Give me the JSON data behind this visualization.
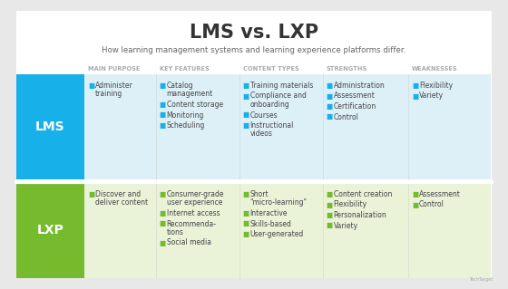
{
  "title": "LMS vs. LXP",
  "subtitle": "How learning management systems and learning experience platforms differ.",
  "background_color": "#e8e8e8",
  "chart_bg": "#ffffff",
  "headers": [
    "MAIN PURPOSE",
    "KEY FEATURES",
    "CONTENT TYPES",
    "STRENGTHS",
    "WEAKNESSES"
  ],
  "lms_label": "LMS",
  "lxp_label": "LXP",
  "lms_color": "#18b0e8",
  "lxp_color": "#76bb2e",
  "lms_row_bg": "#ddf0f8",
  "lxp_row_bg": "#eaf2d8",
  "header_text_color": "#aaaaaa",
  "body_text_color": "#444444",
  "bullet_lms_color": "#18b0e8",
  "bullet_lxp_color": "#76bb2e",
  "lms_data": [
    [
      "Administer\ntraining"
    ],
    [
      "Catalog\nmanagement",
      "Content storage",
      "Monitoring",
      "Scheduling"
    ],
    [
      "Training materials",
      "Compliance and\nonboarding",
      "Courses",
      "Instructional\nvideos"
    ],
    [
      "Administration",
      "Assessment",
      "Certification",
      "Control"
    ],
    [
      "Flexibility",
      "Variety"
    ]
  ],
  "lxp_data": [
    [
      "Discover and\ndeliver content"
    ],
    [
      "Consumer-grade\nuser experience",
      "Internet access",
      "Recommenda-\ntions",
      "Social media"
    ],
    [
      "Short\n\"micro-learning\"",
      "Interactive",
      "Skills-based",
      "User-generated"
    ],
    [
      "Content creation",
      "Flexibility",
      "Personalization",
      "Variety"
    ],
    [
      "Assessment",
      "Control"
    ]
  ],
  "title_fontsize": 15,
  "subtitle_fontsize": 6.2,
  "header_fontsize": 4.8,
  "body_fontsize": 5.5
}
